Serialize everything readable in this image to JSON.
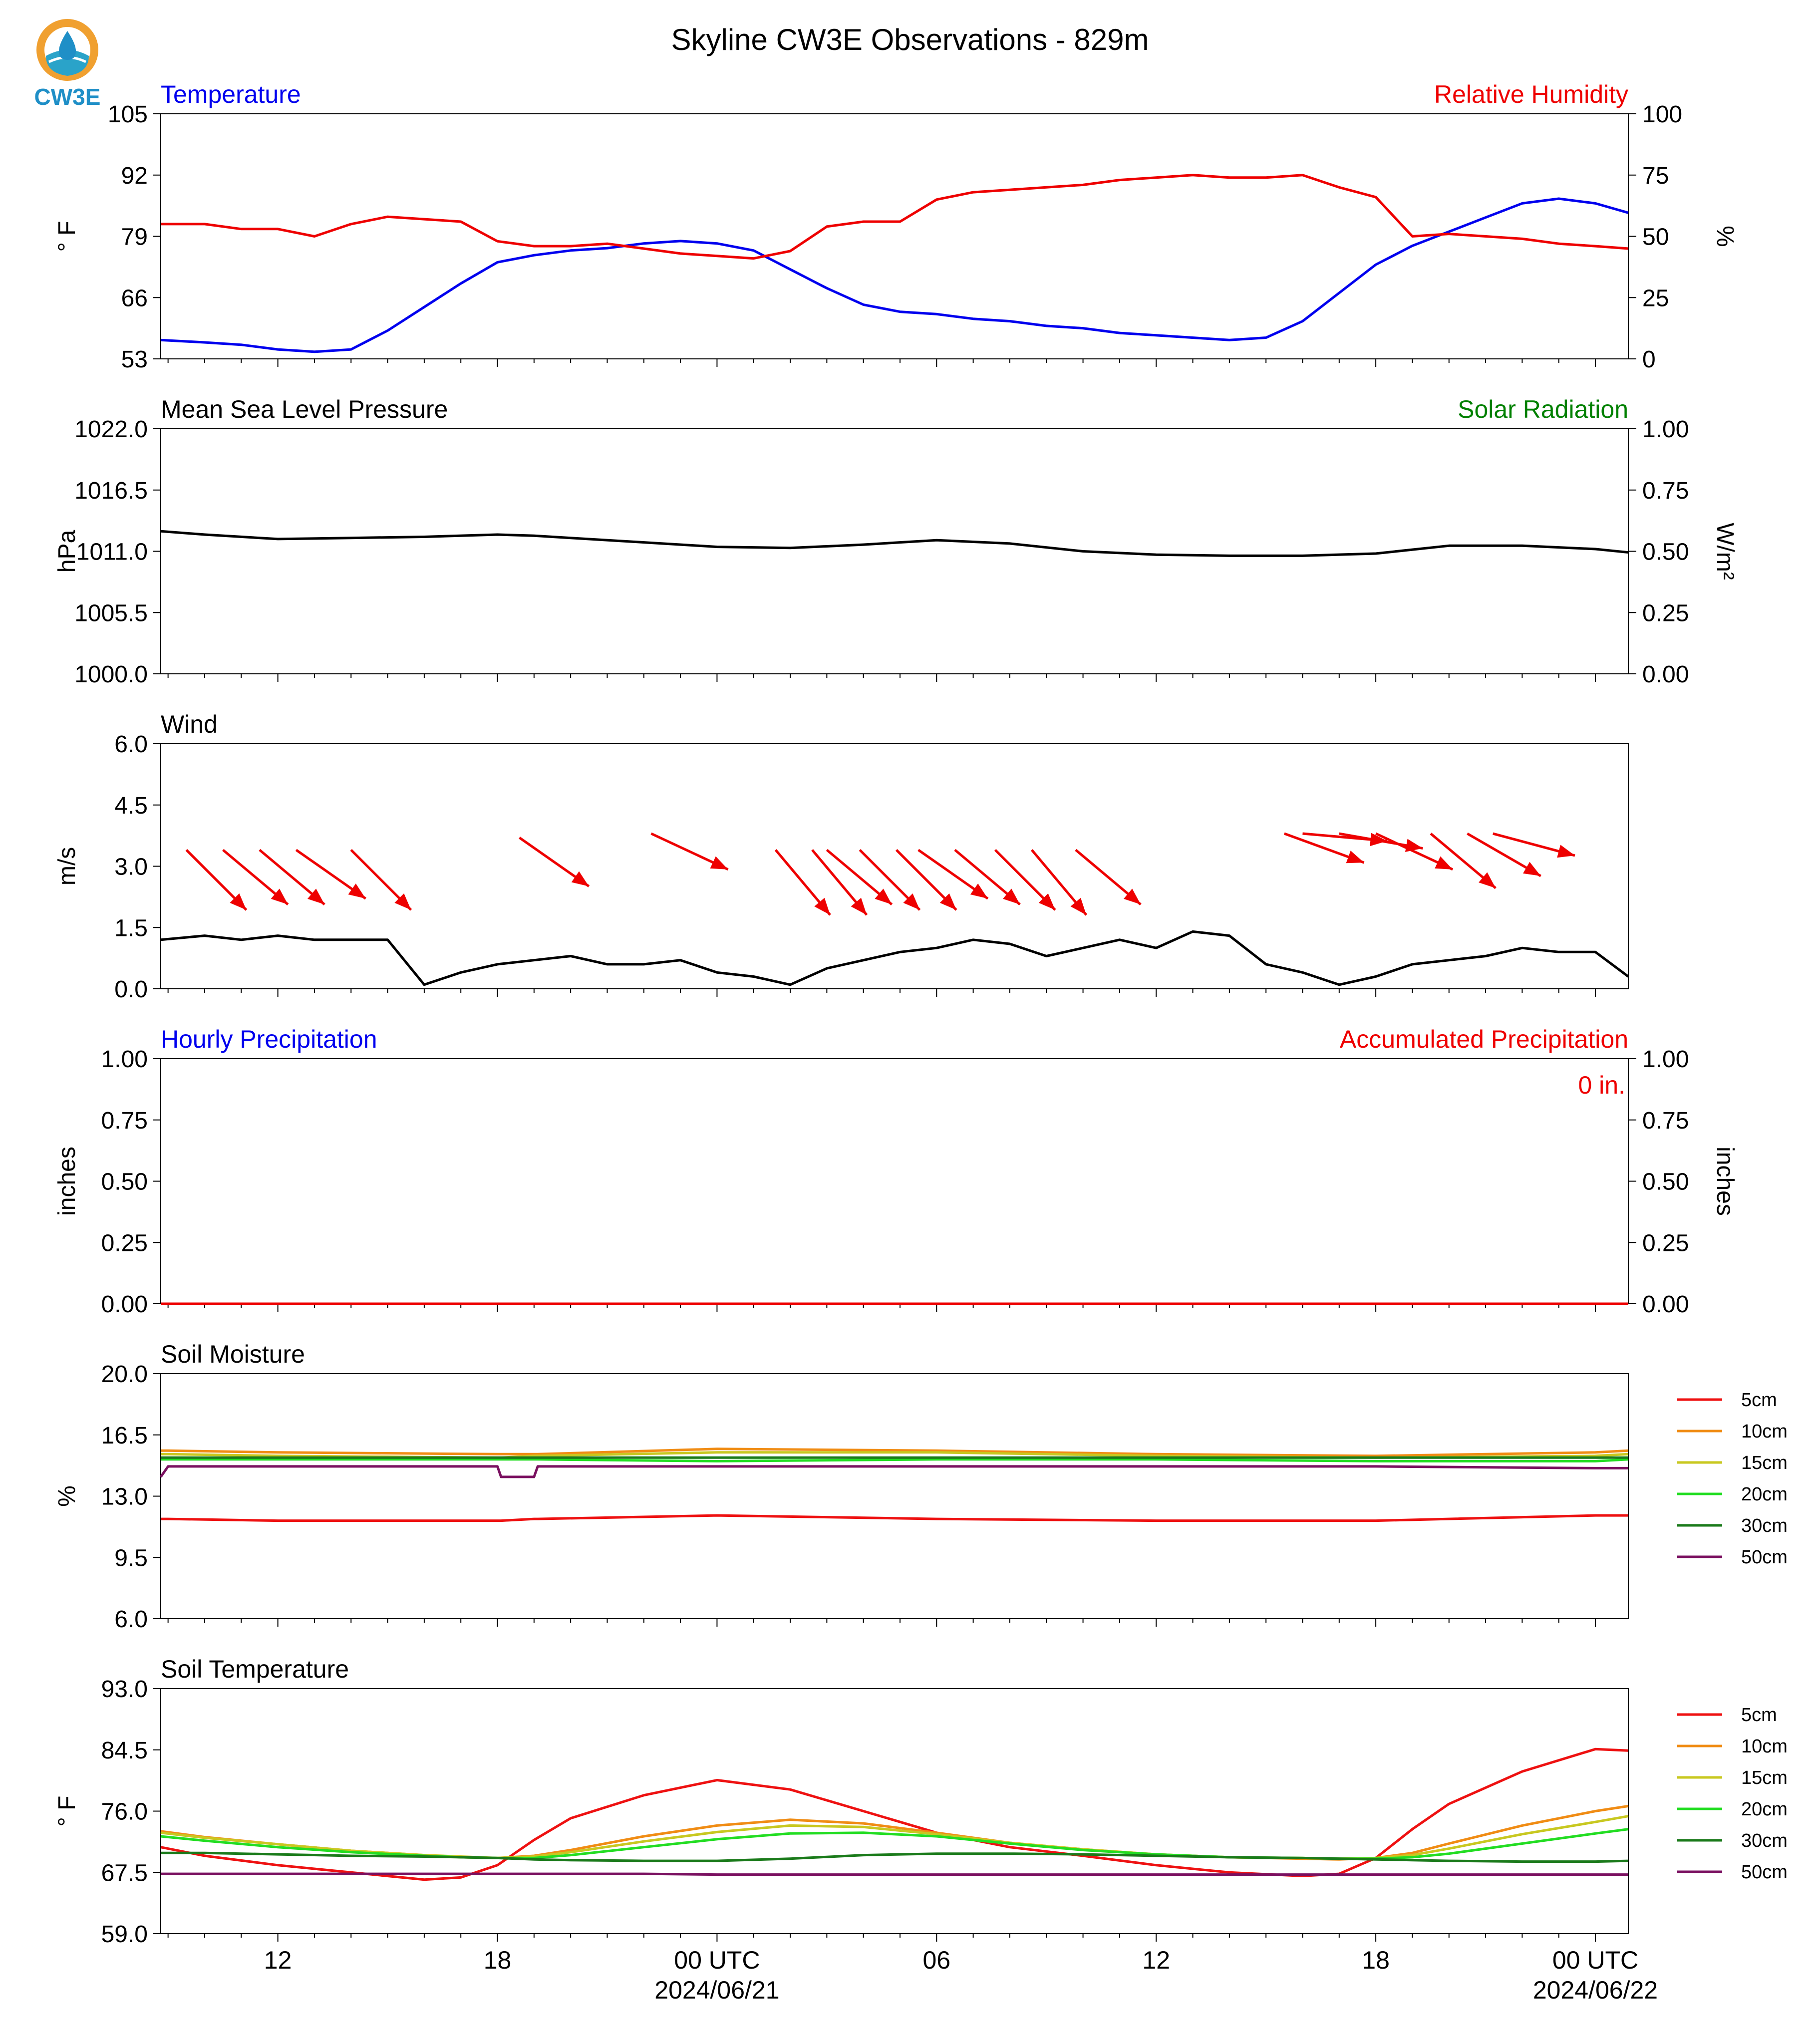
{
  "title": "Skyline CW3E Observations - 829m",
  "logo": {
    "text": "CW3E",
    "colors": {
      "ring": "#f0a030",
      "blue": "#1f8fc7",
      "teal": "#2aa3c9"
    }
  },
  "colors": {
    "temperature": "#0000ee",
    "humidity": "#ee0000",
    "pressure": "#000000",
    "solar": "#008000",
    "wind": "#000000",
    "wind_barb": "#ee0000",
    "hourly_precip": "#0000ee",
    "accum_precip": "#ee0000"
  },
  "x_axis": {
    "ticks": [
      {
        "label": "12",
        "sub": ""
      },
      {
        "label": "18",
        "sub": ""
      },
      {
        "label": "00 UTC",
        "sub": "2024/06/21"
      },
      {
        "label": "06",
        "sub": ""
      },
      {
        "label": "12",
        "sub": ""
      },
      {
        "label": "18",
        "sub": ""
      },
      {
        "label": "00 UTC",
        "sub": "2024/06/22"
      }
    ]
  },
  "chart_data": [
    {
      "type": "line",
      "left_title": "Temperature",
      "right_title": "Relative Humidity",
      "ylabel_left": "° F",
      "ylabel_right": "%",
      "ylim_left": [
        53,
        105
      ],
      "ylim_right": [
        0,
        100
      ],
      "yticks_left": [
        "53",
        "66",
        "79",
        "92",
        "105"
      ],
      "yticks_right": [
        "0",
        "25",
        "50",
        "75",
        "100"
      ],
      "x": [
        8.8,
        10,
        11,
        12,
        13,
        14,
        15,
        16,
        17,
        18,
        19,
        20,
        21,
        22,
        23,
        24,
        25,
        26,
        27,
        28,
        29,
        30,
        31,
        32,
        33,
        34,
        35,
        36,
        37,
        38,
        39,
        40,
        41,
        42,
        43,
        44,
        45,
        46,
        47,
        48,
        48.9
      ],
      "series": [
        {
          "name": "Temperature",
          "axis": "left",
          "color": "#0000ee",
          "values": [
            57,
            56.5,
            56,
            55,
            54.5,
            55,
            59,
            64,
            69,
            73.5,
            75,
            76,
            76.5,
            77.5,
            78,
            77.5,
            76,
            72,
            68,
            64.5,
            63,
            62.5,
            61.5,
            61,
            60,
            59.5,
            58.5,
            58,
            57.5,
            57,
            57.5,
            61,
            67,
            73,
            77,
            80,
            83,
            86,
            87,
            86,
            84
          ]
        },
        {
          "name": "Relative Humidity",
          "axis": "right",
          "color": "#ee0000",
          "values": [
            55,
            55,
            53,
            53,
            50,
            55,
            58,
            57,
            56,
            48,
            46,
            46,
            47,
            45,
            43,
            42,
            41,
            44,
            54,
            56,
            56,
            65,
            68,
            69,
            70,
            71,
            73,
            74,
            75,
            74,
            74,
            75,
            70,
            66,
            50,
            51,
            50,
            49,
            47,
            46,
            45
          ]
        }
      ]
    },
    {
      "type": "line",
      "left_title": "Mean Sea Level Pressure",
      "right_title": "Solar Radiation",
      "ylabel_left": "hPa",
      "ylabel_right": "W/m²",
      "ylim_left": [
        1000,
        1022
      ],
      "ylim_right": [
        0,
        1
      ],
      "yticks_left": [
        "1000.0",
        "1005.5",
        "1011.0",
        "1016.5",
        "1022.0"
      ],
      "yticks_right": [
        "0.00",
        "0.25",
        "0.50",
        "0.75",
        "1.00"
      ],
      "x": [
        8.8,
        10,
        12,
        14,
        16,
        18,
        19,
        20,
        22,
        24,
        26,
        28,
        30,
        32,
        34,
        36,
        38,
        40,
        42,
        44,
        46,
        48,
        48.9
      ],
      "series": [
        {
          "name": "Mean Sea Level Pressure",
          "axis": "left",
          "color": "#000000",
          "values": [
            1012.8,
            1012.5,
            1012.1,
            1012.2,
            1012.3,
            1012.5,
            1012.4,
            1012.2,
            1011.8,
            1011.4,
            1011.3,
            1011.6,
            1012.0,
            1011.7,
            1011.0,
            1010.7,
            1010.6,
            1010.6,
            1010.8,
            1011.5,
            1011.5,
            1011.2,
            1010.9
          ]
        }
      ]
    },
    {
      "type": "line",
      "left_title": "Wind",
      "right_title": "",
      "ylabel_left": "m/s",
      "ylabel_right": "",
      "ylim_left": [
        0,
        6
      ],
      "yticks_left": [
        "0.0",
        "1.5",
        "3.0",
        "4.5",
        "6.0"
      ],
      "yticks_right": [],
      "x": [
        8.8,
        10,
        11,
        12,
        13,
        14,
        15,
        16,
        17,
        18,
        19,
        20,
        21,
        22,
        23,
        24,
        25,
        26,
        27,
        28,
        29,
        30,
        31,
        32,
        33,
        34,
        35,
        36,
        37,
        38,
        39,
        40,
        41,
        42,
        43,
        44,
        45,
        46,
        47,
        48,
        48.9
      ],
      "series": [
        {
          "name": "Wind Speed",
          "axis": "left",
          "color": "#000000",
          "values": [
            1.2,
            1.3,
            1.2,
            1.3,
            1.2,
            1.2,
            1.2,
            0.1,
            0.4,
            0.6,
            0.7,
            0.8,
            0.6,
            0.6,
            0.7,
            0.4,
            0.3,
            0.1,
            0.5,
            0.7,
            0.9,
            1.0,
            1.2,
            1.1,
            0.8,
            1.0,
            1.2,
            1.0,
            1.4,
            1.3,
            0.6,
            0.4,
            0.1,
            0.3,
            0.6,
            0.7,
            0.8,
            1.0,
            0.9,
            0.9,
            0.3
          ]
        }
      ],
      "barbs": [
        [
          9.5,
          3.4,
          -45
        ],
        [
          10.5,
          3.4,
          -50
        ],
        [
          11.5,
          3.4,
          -50
        ],
        [
          12.5,
          3.4,
          -55
        ],
        [
          14,
          3.4,
          -45
        ],
        [
          18.6,
          3.7,
          125
        ],
        [
          22.2,
          3.8,
          115
        ],
        [
          25.6,
          3.4,
          -40
        ],
        [
          26.6,
          3.4,
          -40
        ],
        [
          27.0,
          3.4,
          -50
        ],
        [
          27.9,
          3.4,
          -45
        ],
        [
          28.9,
          3.4,
          -45
        ],
        [
          29.5,
          3.4,
          -55
        ],
        [
          30.5,
          3.4,
          -50
        ],
        [
          31.6,
          3.4,
          -45
        ],
        [
          32.6,
          3.4,
          -40
        ],
        [
          33.8,
          3.4,
          -50
        ],
        [
          39.5,
          3.8,
          110
        ],
        [
          40.0,
          3.8,
          95
        ],
        [
          41.0,
          3.8,
          100
        ],
        [
          42.0,
          3.8,
          115
        ],
        [
          43.5,
          3.8,
          130
        ],
        [
          44.5,
          3.8,
          120
        ],
        [
          45.2,
          3.8,
          105
        ]
      ]
    },
    {
      "type": "line",
      "left_title": "Hourly Precipitation",
      "right_title": "Accumulated Precipitation",
      "annotation": "0 in.",
      "ylabel_left": "inches",
      "ylabel_right": "inches",
      "ylim_left": [
        0,
        1
      ],
      "ylim_right": [
        0,
        1
      ],
      "yticks_left": [
        "0.00",
        "0.25",
        "0.50",
        "0.75",
        "1.00"
      ],
      "yticks_right": [
        "0.00",
        "0.25",
        "0.50",
        "0.75",
        "1.00"
      ],
      "x": [
        8.8,
        48.9
      ],
      "series": [
        {
          "name": "Hourly Precipitation",
          "axis": "left",
          "color": "#0000ee",
          "values": [
            0,
            0
          ]
        },
        {
          "name": "Accumulated Precipitation",
          "axis": "right",
          "color": "#ee0000",
          "values": [
            0,
            0
          ]
        }
      ]
    },
    {
      "type": "line",
      "left_title": "Soil Moisture",
      "right_title": "",
      "ylabel_left": "%",
      "ylabel_right": "",
      "ylim_left": [
        6,
        20
      ],
      "yticks_left": [
        "6.0",
        "9.5",
        "13.0",
        "16.5",
        "20.0"
      ],
      "yticks_right": [],
      "legend": "right",
      "x": [
        8.8,
        9.0,
        12,
        18,
        18.1,
        19,
        19.1,
        24,
        30,
        36,
        42,
        48,
        48.9
      ],
      "series": [
        {
          "name": "5cm",
          "axis": "left",
          "color": "#ee1111",
          "values": [
            11.7,
            11.7,
            11.6,
            11.6,
            11.6,
            11.7,
            11.7,
            11.9,
            11.7,
            11.6,
            11.6,
            11.9,
            11.9
          ]
        },
        {
          "name": "10cm",
          "axis": "left",
          "color": "#f08c14",
          "values": [
            15.6,
            15.6,
            15.5,
            15.4,
            15.4,
            15.4,
            15.4,
            15.7,
            15.6,
            15.4,
            15.3,
            15.5,
            15.6
          ]
        },
        {
          "name": "15cm",
          "axis": "left",
          "color": "#c8c820",
          "values": [
            15.4,
            15.4,
            15.3,
            15.2,
            15.2,
            15.3,
            15.3,
            15.5,
            15.5,
            15.3,
            15.2,
            15.3,
            15.4
          ]
        },
        {
          "name": "20cm",
          "axis": "left",
          "color": "#22dd22",
          "values": [
            15.1,
            15.1,
            15.1,
            15.1,
            15.1,
            15.1,
            15.1,
            15.0,
            15.1,
            15.1,
            15.0,
            15.0,
            15.1
          ]
        },
        {
          "name": "30cm",
          "axis": "left",
          "color": "#1a7a1a",
          "values": [
            15.2,
            15.2,
            15.2,
            15.2,
            15.2,
            15.2,
            15.2,
            15.2,
            15.2,
            15.2,
            15.2,
            15.2,
            15.2
          ]
        },
        {
          "name": "50cm",
          "axis": "left",
          "color": "#7a1060",
          "values": [
            14.1,
            14.7,
            14.7,
            14.7,
            14.1,
            14.1,
            14.7,
            14.7,
            14.7,
            14.7,
            14.7,
            14.6,
            14.6
          ]
        }
      ]
    },
    {
      "type": "line",
      "left_title": "Soil Temperature",
      "right_title": "",
      "ylabel_left": "° F",
      "ylabel_right": "",
      "ylim_left": [
        59,
        93
      ],
      "yticks_left": [
        "59.0",
        "67.5",
        "76.0",
        "84.5",
        "93.0"
      ],
      "yticks_right": [],
      "legend": "right",
      "x": [
        8.8,
        10,
        12,
        14,
        16,
        17,
        18,
        19,
        20,
        22,
        24,
        26,
        28,
        30,
        32,
        34,
        36,
        38,
        40,
        41,
        42,
        43,
        44,
        46,
        48,
        48.9
      ],
      "series": [
        {
          "name": "5cm",
          "axis": "left",
          "color": "#ee1111",
          "values": [
            71.0,
            69.8,
            68.5,
            67.5,
            66.5,
            66.8,
            68.5,
            72.0,
            75.0,
            78.2,
            80.3,
            79.0,
            76.0,
            73.0,
            71.0,
            69.8,
            68.5,
            67.5,
            67.0,
            67.3,
            69.5,
            73.5,
            77.0,
            81.5,
            84.6,
            84.4
          ]
        },
        {
          "name": "10cm",
          "axis": "left",
          "color": "#f08c14",
          "values": [
            73.2,
            72.4,
            71.4,
            70.5,
            69.9,
            69.6,
            69.5,
            69.8,
            70.6,
            72.5,
            74.0,
            74.8,
            74.3,
            73.0,
            71.6,
            70.7,
            70.0,
            69.6,
            69.4,
            69.3,
            69.5,
            70.2,
            71.5,
            74.0,
            76.0,
            76.7
          ]
        },
        {
          "name": "15cm",
          "axis": "left",
          "color": "#c8c820",
          "values": [
            73.0,
            72.3,
            71.4,
            70.5,
            69.9,
            69.7,
            69.5,
            69.7,
            70.3,
            71.8,
            73.1,
            74.0,
            73.8,
            72.8,
            71.6,
            70.7,
            70.0,
            69.6,
            69.5,
            69.4,
            69.5,
            69.9,
            70.8,
            72.8,
            74.5,
            75.3
          ]
        },
        {
          "name": "20cm",
          "axis": "left",
          "color": "#22dd22",
          "values": [
            72.5,
            71.9,
            71.0,
            70.3,
            69.8,
            69.6,
            69.5,
            69.5,
            69.9,
            71.0,
            72.1,
            72.9,
            73.0,
            72.5,
            71.5,
            70.6,
            70.0,
            69.6,
            69.5,
            69.4,
            69.4,
            69.6,
            70.1,
            71.5,
            72.9,
            73.5
          ]
        },
        {
          "name": "30cm",
          "axis": "left",
          "color": "#1a7a1a",
          "values": [
            70.2,
            70.2,
            70.0,
            69.8,
            69.7,
            69.6,
            69.5,
            69.3,
            69.2,
            69.1,
            69.1,
            69.4,
            69.9,
            70.1,
            70.1,
            70.0,
            69.8,
            69.6,
            69.5,
            69.4,
            69.3,
            69.2,
            69.1,
            69.0,
            69.0,
            69.1
          ]
        },
        {
          "name": "50cm",
          "axis": "left",
          "color": "#7a1060",
          "values": [
            67.3,
            67.3,
            67.3,
            67.3,
            67.3,
            67.3,
            67.3,
            67.3,
            67.3,
            67.3,
            67.2,
            67.2,
            67.2,
            67.2,
            67.2,
            67.2,
            67.2,
            67.2,
            67.2,
            67.2,
            67.2,
            67.2,
            67.2,
            67.2,
            67.2,
            67.2
          ]
        }
      ]
    }
  ]
}
